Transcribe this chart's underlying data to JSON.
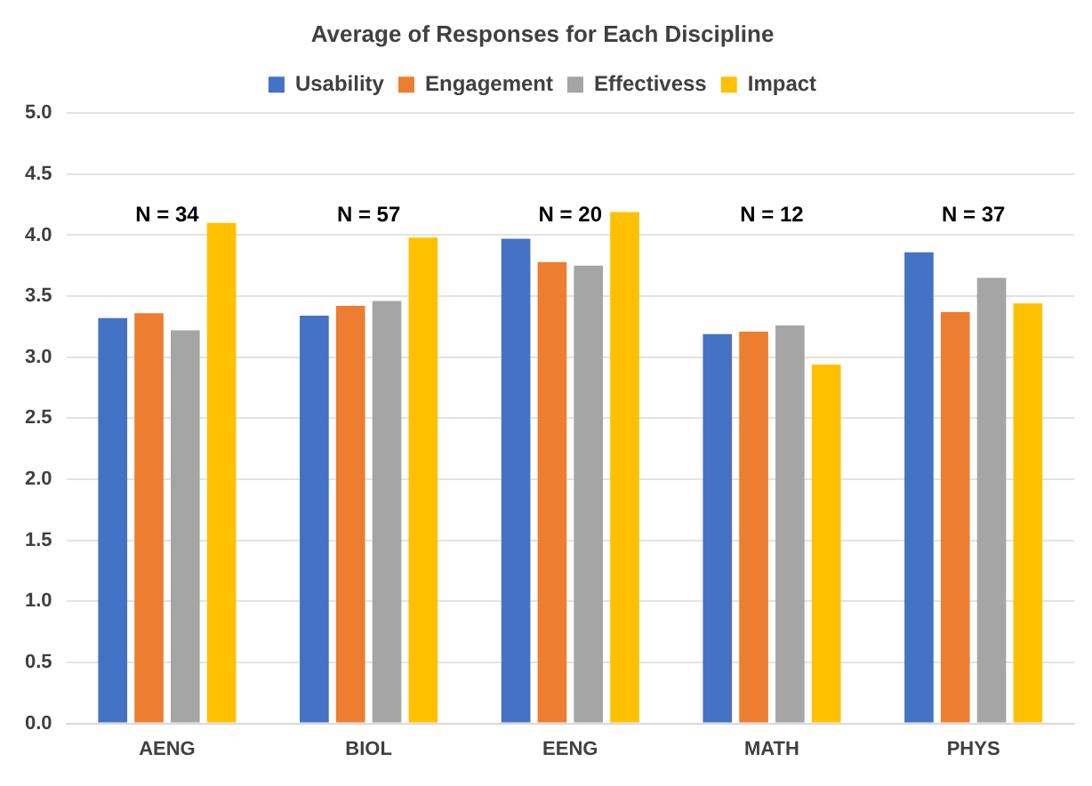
{
  "chart_data": {
    "type": "bar",
    "title": "Average of Responses for Each Discipline",
    "categories": [
      "AENG",
      "BIOL",
      "EENG",
      "MATH",
      "PHYS"
    ],
    "series": [
      {
        "name": "Usability",
        "color": "#4472c4",
        "values": [
          3.32,
          3.34,
          3.97,
          3.19,
          3.86
        ]
      },
      {
        "name": "Engagement",
        "color": "#ed7d31",
        "values": [
          3.36,
          3.42,
          3.78,
          3.21,
          3.37
        ]
      },
      {
        "name": "Effectivess",
        "color": "#a5a5a5",
        "values": [
          3.22,
          3.46,
          3.75,
          3.26,
          3.65
        ]
      },
      {
        "name": "Impact",
        "color": "#ffc000",
        "values": [
          4.1,
          3.98,
          4.19,
          2.94,
          3.44
        ]
      }
    ],
    "ylim": [
      0,
      5
    ],
    "yticks": [
      {
        "value": 0,
        "label": "0.0"
      },
      {
        "value": 0.5,
        "label": "0.5"
      },
      {
        "value": 1,
        "label": "1.0"
      },
      {
        "value": 1.5,
        "label": "1.5"
      },
      {
        "value": 2,
        "label": "2.0"
      },
      {
        "value": 2.5,
        "label": "2.5"
      },
      {
        "value": 3,
        "label": "3.0"
      },
      {
        "value": 3.5,
        "label": "3.5"
      },
      {
        "value": 4,
        "label": "4.0"
      },
      {
        "value": 4.5,
        "label": "4.5"
      },
      {
        "value": 5,
        "label": "5.0"
      }
    ],
    "grid": "y",
    "legend": "top",
    "annotations": [
      "N = 34",
      "N = 57",
      "N = 20",
      "N = 12",
      "N = 37"
    ]
  }
}
